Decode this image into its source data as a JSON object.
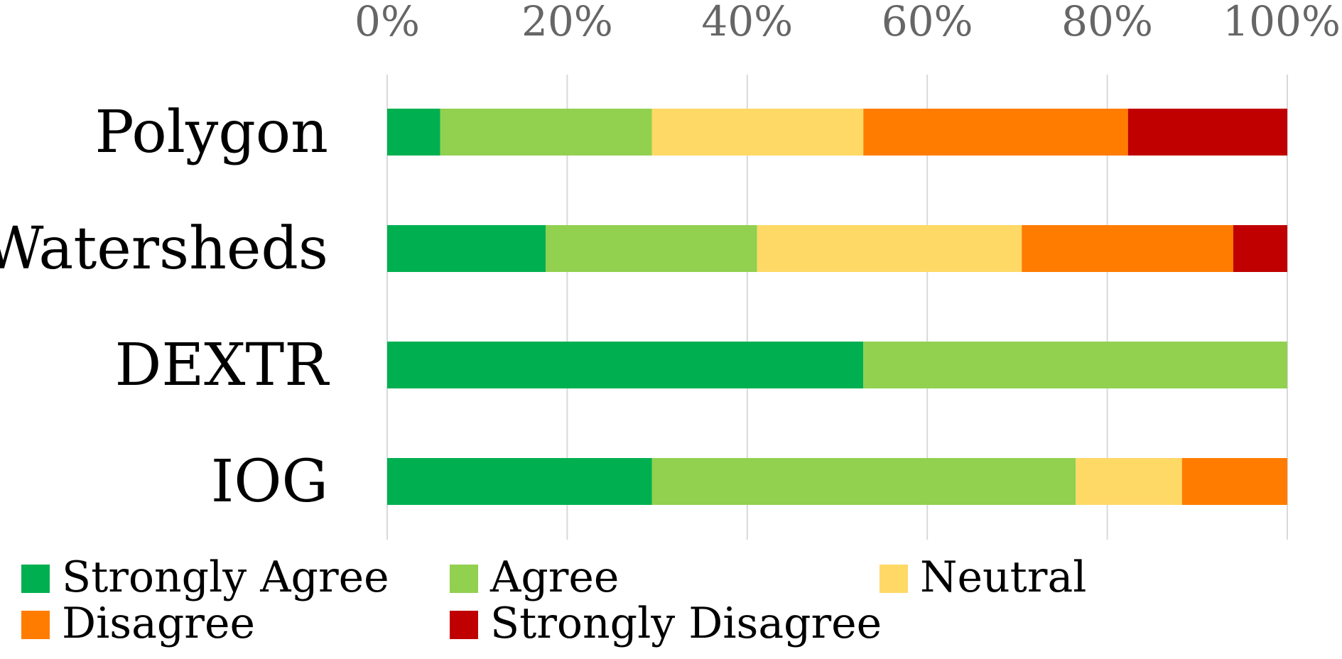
{
  "chart_data": {
    "type": "bar",
    "orientation": "horizontal",
    "stacked": true,
    "normalized": true,
    "categories": [
      "Polygon",
      "Watersheds",
      "DEXTR",
      "IOG"
    ],
    "series": [
      {
        "name": "Strongly Agree",
        "color": "#00b050",
        "values": [
          5.9,
          17.6,
          52.9,
          29.4
        ]
      },
      {
        "name": "Agree",
        "color": "#92d050",
        "values": [
          23.5,
          23.5,
          47.1,
          47.1
        ]
      },
      {
        "name": "Neutral",
        "color": "#ffd966",
        "values": [
          23.5,
          29.4,
          0,
          11.8
        ]
      },
      {
        "name": "Disagree",
        "color": "#ff7c00",
        "values": [
          29.4,
          23.5,
          0,
          11.7
        ]
      },
      {
        "name": "Strongly Disagree",
        "color": "#c00000",
        "values": [
          17.7,
          6.0,
          0,
          0
        ]
      }
    ],
    "x_ticks": [
      "0%",
      "20%",
      "40%",
      "60%",
      "80%",
      "100%"
    ],
    "xlim": [
      0,
      100
    ],
    "x_axis_position": "top",
    "grid": true,
    "legend_position": "bottom",
    "title": "",
    "xlabel": "",
    "ylabel": ""
  }
}
